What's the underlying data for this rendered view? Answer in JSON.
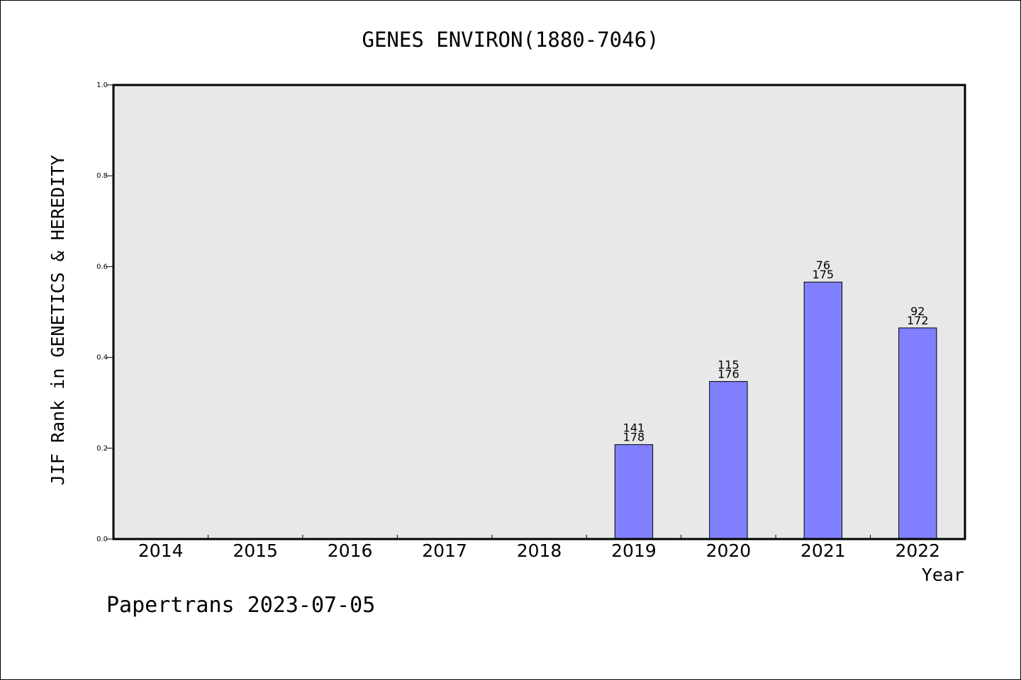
{
  "chart_data": {
    "type": "bar",
    "title": "GENES ENVIRON(1880-7046)",
    "xlabel": "Year",
    "ylabel": "JIF Rank in GENETICS & HEREDITY",
    "categories": [
      "2014",
      "2015",
      "2016",
      "2017",
      "2018",
      "2019",
      "2020",
      "2021",
      "2022"
    ],
    "values": [
      null,
      null,
      null,
      null,
      null,
      0.208,
      0.347,
      0.566,
      0.465
    ],
    "rank": [
      null,
      null,
      null,
      null,
      null,
      "141",
      "115",
      "76",
      "92"
    ],
    "total": [
      null,
      null,
      null,
      null,
      null,
      "178",
      "176",
      "175",
      "172"
    ],
    "ylim": [
      0,
      1.0
    ],
    "yticks": [
      "0.0",
      "0.2",
      "0.4",
      "0.6",
      "0.8",
      "1.0"
    ],
    "grid": false,
    "colors": {
      "bar": "#8080ff",
      "plot_bg": "#e8e8e8"
    }
  },
  "footer": {
    "credit": "Papertrans 2023-07-05"
  }
}
